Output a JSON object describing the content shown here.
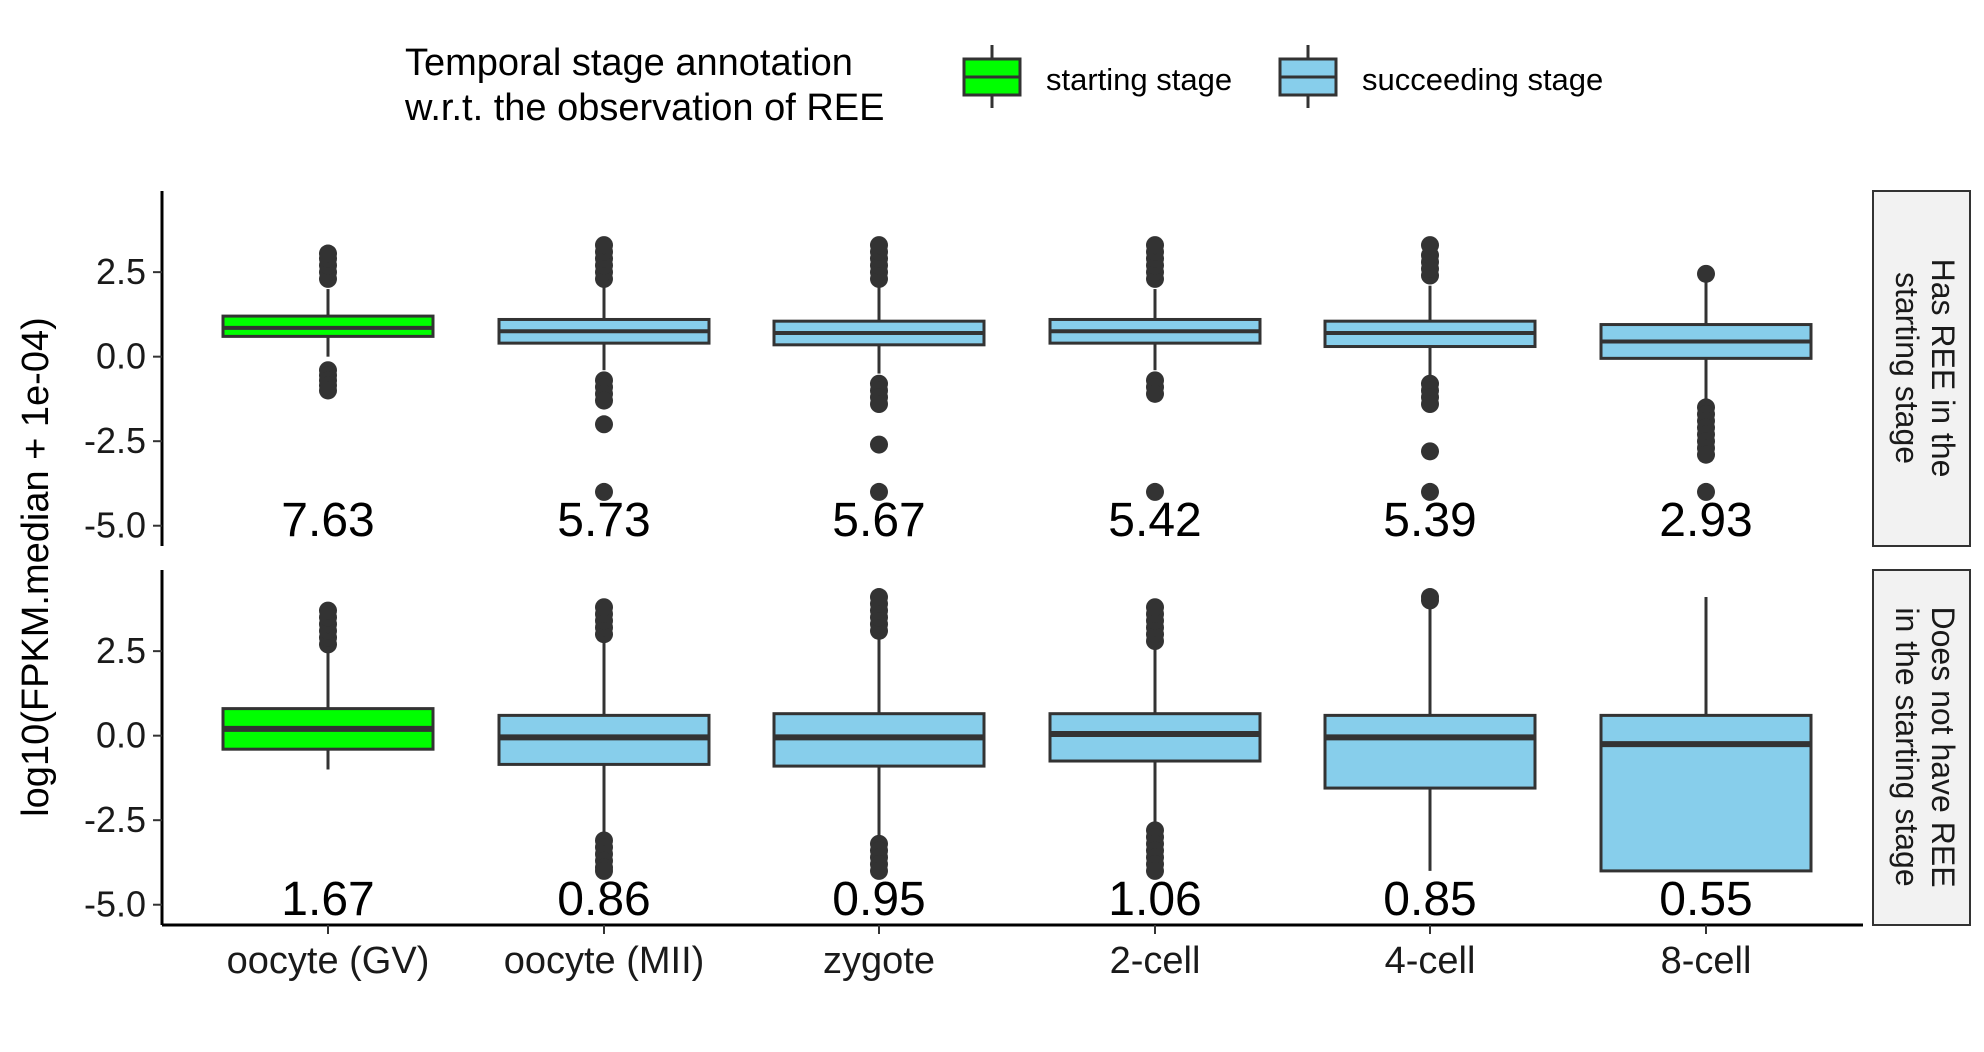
{
  "chart_data": {
    "type": "boxplot",
    "ylabel": "log10(FPKM.median + 1e-04)",
    "categories": [
      "oocyte (GV)",
      "oocyte (MII)",
      "zygote",
      "2-cell",
      "4-cell",
      "8-cell"
    ],
    "y_ticks": [
      "2.5",
      "0.0",
      "-2.5",
      "-5.0"
    ],
    "y_tick_values": [
      2.5,
      0.0,
      -2.5,
      -5.0
    ],
    "ylim": [
      -5.6,
      4.9
    ],
    "legend": {
      "title_lines": [
        "Temporal stage annotation",
        "w.r.t. the observation of REE"
      ],
      "items": [
        {
          "label": "starting stage",
          "color": "#00ff00"
        },
        {
          "label": "succeeding stage",
          "color": "#87ceeb"
        }
      ],
      "placement": "top"
    },
    "colors": {
      "starting": "#00ff00",
      "succeeding": "#87ceeb",
      "line": "#333333",
      "strip_bg": "#f2f2f2"
    },
    "panels": [
      {
        "strip_lines": [
          "Has REE in the",
          "starting stage"
        ],
        "boxes": [
          {
            "stage": "starting",
            "low": 0.0,
            "q1": 0.6,
            "median": 0.85,
            "q3": 1.2,
            "high": 2.0,
            "outliers": [
              2.3,
              2.5,
              2.7,
              2.9,
              3.05,
              -0.4,
              -0.55,
              -0.7,
              -0.85,
              -1.0
            ],
            "annotation": "7.63"
          },
          {
            "stage": "succeeding",
            "low": -0.4,
            "q1": 0.4,
            "median": 0.75,
            "q3": 1.1,
            "high": 2.05,
            "outliers": [
              2.3,
              2.5,
              2.7,
              2.9,
              3.1,
              3.3,
              -0.7,
              -0.9,
              -1.1,
              -1.3,
              -2.0,
              -4.0
            ],
            "annotation": "5.73"
          },
          {
            "stage": "succeeding",
            "low": -0.5,
            "q1": 0.35,
            "median": 0.7,
            "q3": 1.05,
            "high": 2.05,
            "outliers": [
              2.3,
              2.5,
              2.7,
              2.9,
              3.1,
              3.3,
              -0.8,
              -1.0,
              -1.2,
              -1.4,
              -2.6,
              -4.0
            ],
            "annotation": "5.67"
          },
          {
            "stage": "succeeding",
            "low": -0.4,
            "q1": 0.4,
            "median": 0.75,
            "q3": 1.1,
            "high": 2.0,
            "outliers": [
              2.3,
              2.5,
              2.7,
              2.9,
              3.1,
              3.3,
              -0.7,
              -0.9,
              -1.1,
              -4.0
            ],
            "annotation": "5.42"
          },
          {
            "stage": "succeeding",
            "low": -0.6,
            "q1": 0.3,
            "median": 0.7,
            "q3": 1.05,
            "high": 2.1,
            "outliers": [
              2.4,
              2.6,
              2.8,
              3.0,
              3.3,
              -0.8,
              -1.0,
              -1.2,
              -1.4,
              -2.8,
              -4.0
            ],
            "annotation": "5.39"
          },
          {
            "stage": "succeeding",
            "low": -1.3,
            "q1": -0.05,
            "median": 0.45,
            "q3": 0.95,
            "high": 2.45,
            "outliers": [
              2.45,
              -1.5,
              -1.7,
              -1.9,
              -2.1,
              -2.3,
              -2.5,
              -2.7,
              -2.9,
              -4.0
            ],
            "annotation": "2.93"
          }
        ]
      },
      {
        "strip_lines": [
          "Does not have REE",
          "in the starting stage"
        ],
        "boxes": [
          {
            "stage": "starting",
            "low": -1.0,
            "q1": -0.4,
            "median": 0.2,
            "q3": 0.8,
            "high": 2.5,
            "outliers": [
              2.7,
              2.9,
              3.1,
              3.3,
              3.5,
              3.7
            ],
            "annotation": "1.67"
          },
          {
            "stage": "succeeding",
            "low": -2.9,
            "q1": -0.85,
            "median": -0.05,
            "q3": 0.6,
            "high": 2.8,
            "outliers": [
              3.0,
              3.2,
              3.4,
              3.6,
              3.8,
              -3.1,
              -3.3,
              -3.5,
              -3.7,
              -3.9,
              -4.0
            ],
            "annotation": "0.86"
          },
          {
            "stage": "succeeding",
            "low": -3.0,
            "q1": -0.9,
            "median": -0.05,
            "q3": 0.65,
            "high": 2.9,
            "outliers": [
              3.1,
              3.3,
              3.5,
              3.7,
              3.9,
              4.1,
              -3.2,
              -3.4,
              -3.6,
              -3.8,
              -4.0
            ],
            "annotation": "0.95"
          },
          {
            "stage": "succeeding",
            "low": -2.6,
            "q1": -0.75,
            "median": 0.05,
            "q3": 0.65,
            "high": 2.6,
            "outliers": [
              2.8,
              3.0,
              3.2,
              3.4,
              3.6,
              3.8,
              -2.8,
              -3.0,
              -3.2,
              -3.4,
              -3.6,
              -3.8,
              -4.0
            ],
            "annotation": "1.06"
          },
          {
            "stage": "succeeding",
            "low": -4.0,
            "q1": -1.55,
            "median": -0.05,
            "q3": 0.6,
            "high": 3.8,
            "outliers": [
              4.0,
              4.1
            ],
            "annotation": "0.85"
          },
          {
            "stage": "succeeding",
            "low": -4.0,
            "q1": -4.0,
            "median": -0.25,
            "q3": 0.6,
            "high": 4.1,
            "outliers": [],
            "annotation": "0.55"
          }
        ]
      }
    ]
  }
}
